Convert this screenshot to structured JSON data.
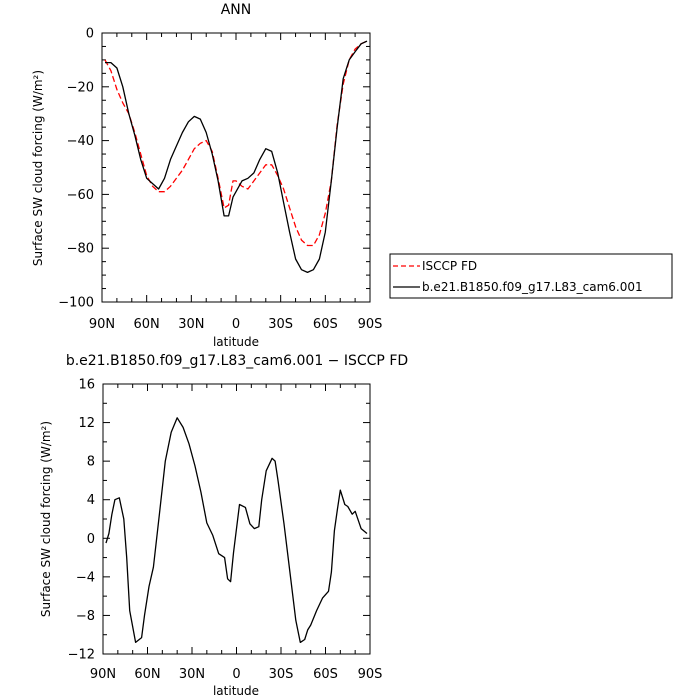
{
  "chart_data": [
    {
      "type": "line",
      "title": "ANN",
      "xlabel": "latitude",
      "ylabel": "Surface SW cloud forcing (W/m²)",
      "xlim": [
        90,
        -90
      ],
      "ylim": [
        -100,
        0
      ],
      "x_tick_labels": [
        "90N",
        "60N",
        "30N",
        "0",
        "30S",
        "60S",
        "90S"
      ],
      "y_tick_labels": [
        "0",
        "−20",
        "−40",
        "−60",
        "−80",
        "−100"
      ],
      "legend_position": "right",
      "series": [
        {
          "name": "ISCCP FD",
          "color": "#ff0000",
          "dash": "dashed",
          "x": [
            88,
            84,
            80,
            76,
            72,
            68,
            64,
            60,
            56,
            52,
            48,
            44,
            40,
            36,
            32,
            28,
            24,
            20,
            16,
            12,
            8,
            5,
            2,
            0,
            -4,
            -8,
            -12,
            -16,
            -20,
            -24,
            -28,
            -32,
            -36,
            -40,
            -44,
            -48,
            -52,
            -56,
            -60,
            -64,
            -68,
            -72,
            -76,
            -80,
            -84,
            -88
          ],
          "y": [
            -10,
            -14,
            -21,
            -26,
            -30,
            -37,
            -45,
            -53,
            -57,
            -59,
            -59,
            -57,
            -54,
            -51,
            -47,
            -43,
            -41,
            -40,
            -44,
            -54,
            -65,
            -64,
            -55,
            -55,
            -57,
            -58,
            -55,
            -52,
            -49,
            -49,
            -53,
            -58,
            -65,
            -72,
            -77,
            -79,
            -79,
            -75,
            -67,
            -55,
            -34,
            -19,
            -10,
            -6,
            -4,
            -3
          ]
        },
        {
          "name": "b.e21.B1850.f09_g17.L83_cam6.001",
          "color": "#000000",
          "dash": "solid",
          "x": [
            88,
            84,
            80,
            76,
            72,
            68,
            64,
            60,
            56,
            52,
            48,
            44,
            40,
            36,
            32,
            28,
            24,
            20,
            16,
            12,
            8,
            5,
            2,
            0,
            -4,
            -8,
            -12,
            -16,
            -20,
            -24,
            -28,
            -32,
            -36,
            -40,
            -44,
            -48,
            -52,
            -56,
            -60,
            -64,
            -68,
            -72,
            -76,
            -80,
            -84,
            -88
          ],
          "y": [
            -11,
            -11,
            -13,
            -20,
            -30,
            -38,
            -47,
            -54,
            -56,
            -58,
            -54,
            -47,
            -42,
            -37,
            -33,
            -31,
            -32,
            -37,
            -45,
            -55,
            -68,
            -68,
            -61,
            -59,
            -55,
            -54,
            -52,
            -47,
            -43,
            -44,
            -52,
            -63,
            -74,
            -84,
            -88,
            -89,
            -88,
            -84,
            -74,
            -55,
            -35,
            -17,
            -10,
            -7,
            -4,
            -3
          ]
        }
      ]
    },
    {
      "type": "line",
      "title": "b.e21.B1850.f09_g17.L83_cam6.001 − ISCCP FD",
      "xlabel": "latitude",
      "ylabel": "Surface SW cloud forcing (W/m²)",
      "xlim": [
        90,
        -90
      ],
      "ylim": [
        -12,
        16
      ],
      "x_tick_labels": [
        "90N",
        "60N",
        "30N",
        "0",
        "30S",
        "60S",
        "90S"
      ],
      "y_tick_labels": [
        "16",
        "12",
        "8",
        "4",
        "0",
        "−4",
        "−8",
        "−12"
      ],
      "series": [
        {
          "color": "#000000",
          "x": [
            88,
            86,
            84,
            82,
            79,
            76,
            74,
            72,
            68,
            64,
            62,
            59,
            56,
            52,
            48,
            44,
            40,
            36,
            32,
            28,
            24,
            20,
            16,
            12,
            8,
            6,
            4,
            2,
            -2,
            -6,
            -9,
            -12,
            -15,
            -17,
            -20,
            -24,
            -26,
            -28,
            -32,
            -36,
            -40,
            -43,
            -46,
            -48,
            -50,
            -54,
            -58,
            -62,
            -64,
            -66,
            -68,
            -70,
            -73,
            -75,
            -78,
            -80,
            -84,
            -88
          ],
          "y": [
            -0.5,
            0.5,
            2.5,
            4.0,
            4.2,
            2.0,
            -2.0,
            -7.5,
            -10.8,
            -10.3,
            -8.0,
            -5.0,
            -3.0,
            2.5,
            8.0,
            11.0,
            12.5,
            11.5,
            9.8,
            7.5,
            4.8,
            1.6,
            0.3,
            -1.6,
            -2.0,
            -4.2,
            -4.5,
            -1.5,
            3.5,
            3.2,
            1.5,
            1.0,
            1.2,
            4.0,
            7.0,
            8.3,
            8.0,
            6.0,
            1.5,
            -3.5,
            -8.5,
            -10.8,
            -10.5,
            -9.5,
            -9.0,
            -7.5,
            -6.2,
            -5.5,
            -3.5,
            0.8,
            3.0,
            5.0,
            3.5,
            3.3,
            2.5,
            2.8,
            1.0,
            0.5
          ]
        }
      ]
    }
  ]
}
